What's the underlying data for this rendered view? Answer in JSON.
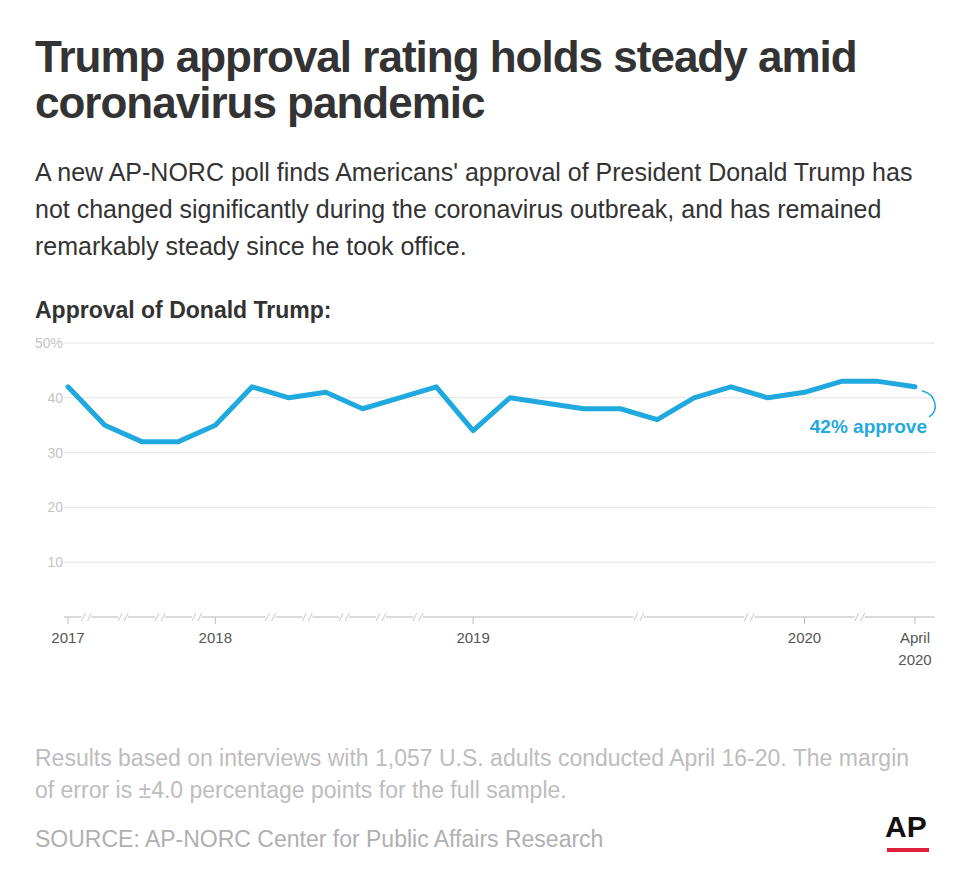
{
  "chart_data": {
    "type": "line",
    "title": "Trump approval rating holds steady amid coronavirus pandemic",
    "subtitle": "A new AP-NORC poll finds Americans' approval of President Donald Trump has not changed significantly during the coronavirus outbreak, and has remained remarkably steady since he took office.",
    "y_label": "Approval of Donald Trump:",
    "categories": [
      "2017",
      null,
      null,
      null,
      "2018",
      null,
      null,
      null,
      null,
      null,
      null,
      "2019",
      null,
      null,
      null,
      null,
      null,
      null,
      null,
      null,
      "2020",
      null,
      null,
      "April 2020"
    ],
    "values": [
      42,
      35,
      32,
      32,
      35,
      42,
      40,
      41,
      38,
      40,
      42,
      34,
      40,
      39,
      38,
      38,
      36,
      40,
      42,
      40,
      41,
      43,
      43,
      42
    ],
    "color": "#1fa9df",
    "ylim": [
      0,
      50
    ],
    "yticks": [
      10,
      20,
      30,
      40,
      {
        "value": 50,
        "label": "50%"
      }
    ],
    "grid": true,
    "annotation": "42% approve",
    "note": "Results based on interviews with 1,057 U.S. adults conducted April 16-20. The margin of error is ±4.0 percentage points for the full sample.",
    "source": "SOURCE: AP-NORC Center for Public Affairs Research",
    "logo": "AP"
  }
}
